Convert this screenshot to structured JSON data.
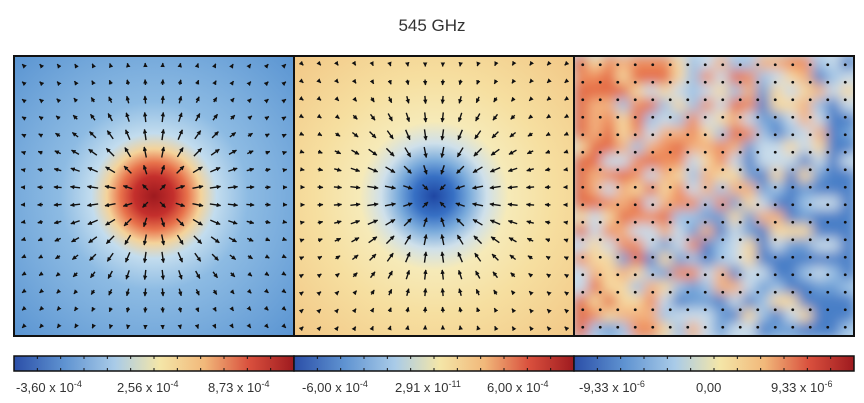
{
  "title": "545 GHz",
  "colors": {
    "cmap": [
      "#2b4fa8",
      "#5f93d1",
      "#a9cbe8",
      "#f4e6a8",
      "#f1b87a",
      "#d9503d",
      "#9e1a1f"
    ],
    "arrow": "#111111",
    "frame": "#111111"
  },
  "panels": [
    {
      "field": "source-peak",
      "vectors": "radial-outward",
      "colorbar": {
        "ticks": [
          {
            "mantissa": "-3,60 x 10",
            "exp": "-4"
          },
          {
            "mantissa": "2,56 x 10",
            "exp": "-4"
          },
          {
            "mantissa": "8,73 x 10",
            "exp": "-4"
          }
        ]
      }
    },
    {
      "field": "sink-dip",
      "vectors": "radial-inward",
      "colorbar": {
        "ticks": [
          {
            "mantissa": "-6,00 x 10",
            "exp": "-4"
          },
          {
            "mantissa": "2,91 x 10",
            "exp": "-11"
          },
          {
            "mantissa": "6,00 x 10",
            "exp": "-4"
          }
        ]
      }
    },
    {
      "field": "random-noise",
      "vectors": "dots",
      "colorbar": {
        "ticks": [
          {
            "mantissa": "-9,33 x 10",
            "exp": "-6"
          },
          {
            "mantissa": "0,00",
            "exp": ""
          },
          {
            "mantissa": "9,33 x 10",
            "exp": "-6"
          }
        ]
      }
    }
  ]
}
